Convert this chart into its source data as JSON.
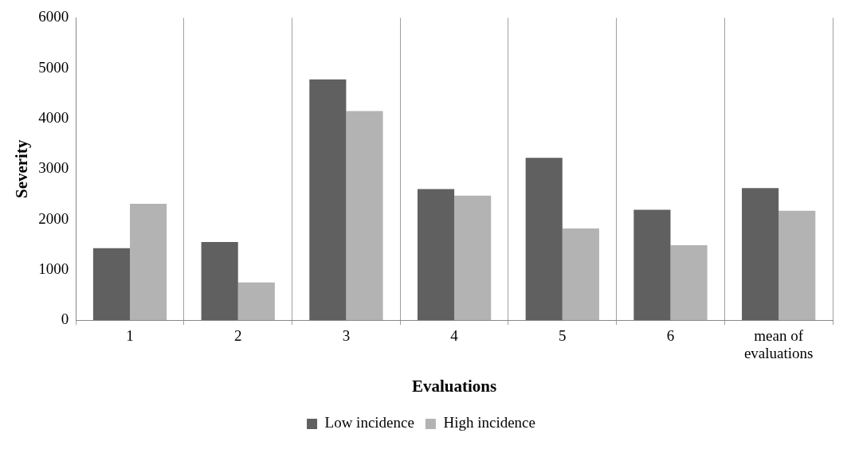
{
  "chart_data": {
    "type": "bar",
    "xlabel": "Evaluations",
    "ylabel": "Severity",
    "categories": [
      "1",
      "2",
      "3",
      "4",
      "5",
      "6",
      "mean of evaluations"
    ],
    "series": [
      {
        "name": "Low incidence",
        "color": "#606060",
        "values": [
          1430,
          1550,
          4780,
          2600,
          3220,
          2190,
          2620
        ]
      },
      {
        "name": "High incidence",
        "color": "#b3b3b3",
        "values": [
          2310,
          750,
          4150,
          2470,
          1820,
          1490,
          2170
        ]
      }
    ],
    "ylim": [
      0,
      6000
    ],
    "yticks": [
      0,
      1000,
      2000,
      3000,
      4000,
      5000,
      6000
    ],
    "grid": "x",
    "legend": "bottom"
  }
}
